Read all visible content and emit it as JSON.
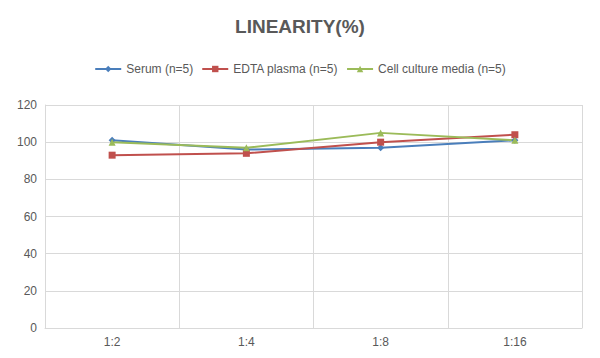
{
  "chart_data": {
    "type": "line",
    "title": "LINEARITY(%)",
    "categories": [
      "1:2",
      "1:4",
      "1:8",
      "1:16"
    ],
    "series": [
      {
        "name": "Serum (n=5)",
        "color": "#4a7ebb",
        "marker": "diamond",
        "values": [
          101,
          96,
          97,
          101
        ]
      },
      {
        "name": "EDTA plasma (n=5)",
        "color": "#c0504d",
        "marker": "square",
        "values": [
          93,
          94,
          100,
          104
        ]
      },
      {
        "name": "Cell culture media (n=5)",
        "color": "#9bbb59",
        "marker": "triangle",
        "values": [
          100,
          97,
          105,
          101
        ]
      }
    ],
    "ylim": [
      0,
      120
    ],
    "yticks": [
      0,
      20,
      40,
      60,
      80,
      100,
      120
    ],
    "grid": true,
    "legend": "top"
  }
}
